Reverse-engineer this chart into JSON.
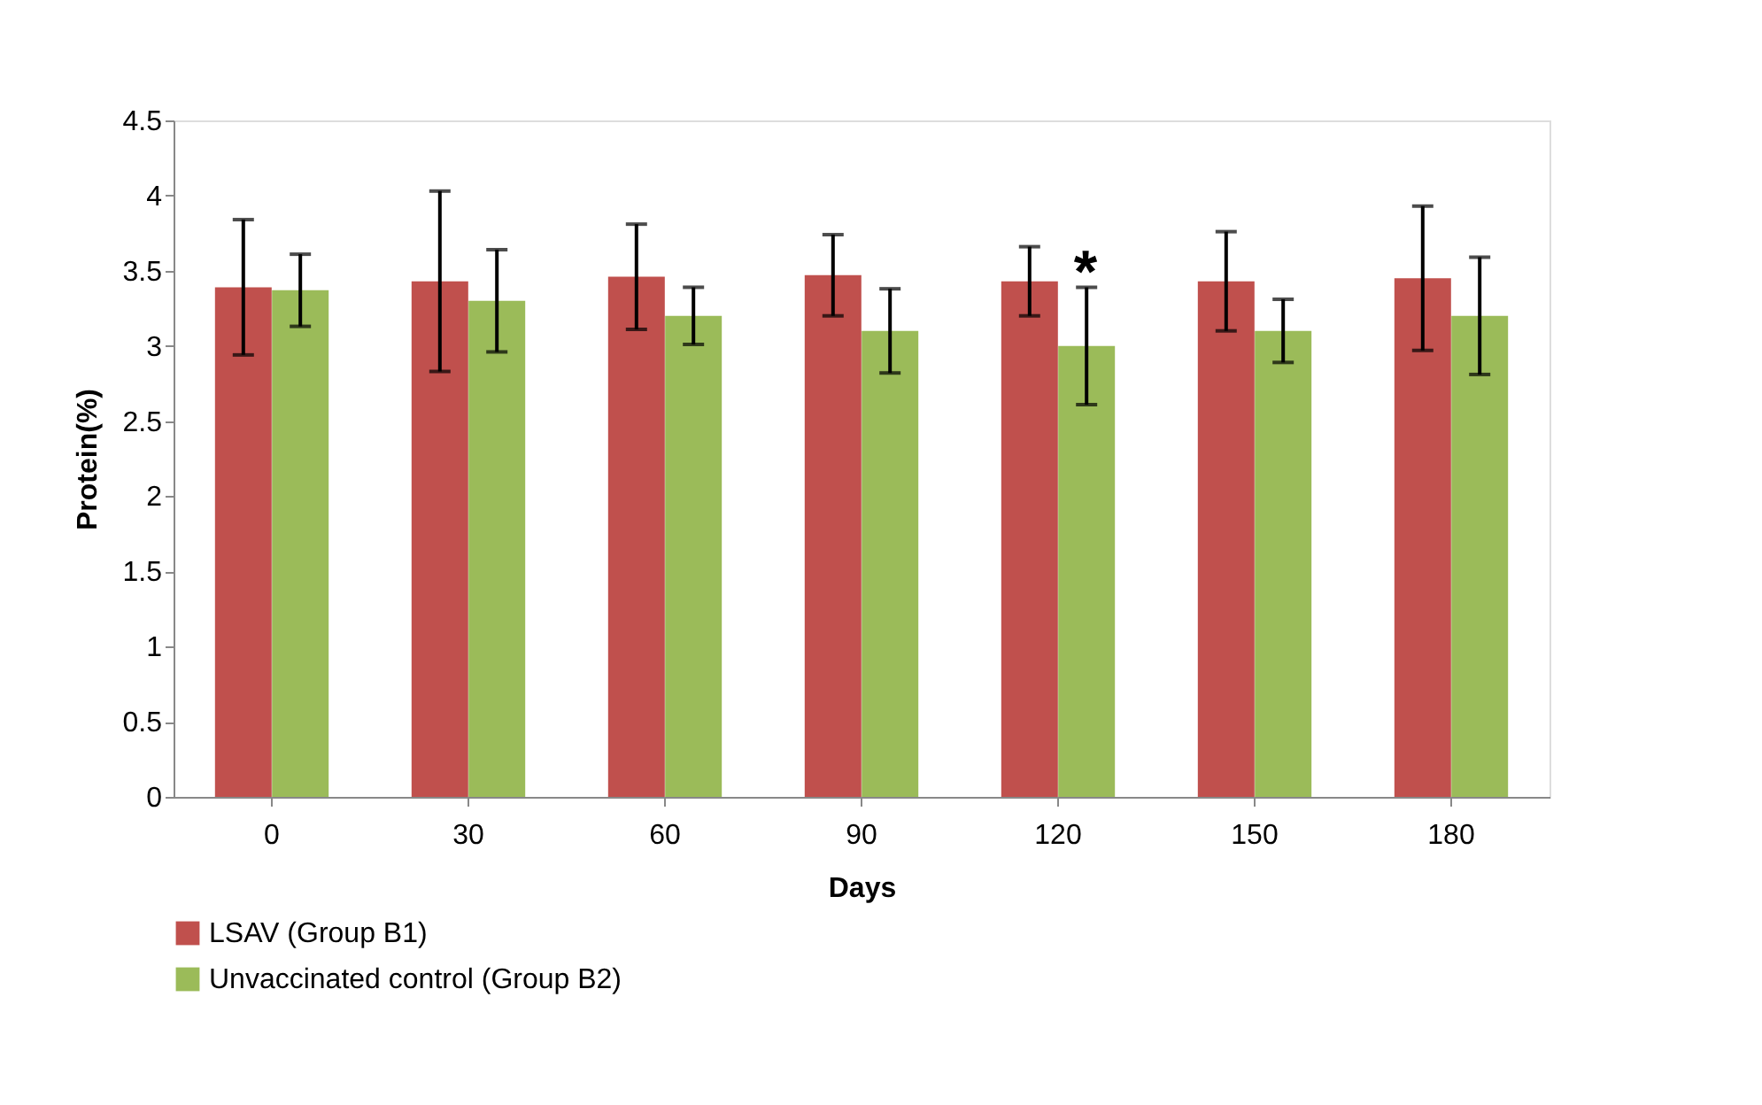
{
  "chart_data": {
    "type": "bar",
    "xlabel": "Days",
    "ylabel": "Protein(%)",
    "categories": [
      "0",
      "30",
      "60",
      "90",
      "120",
      "150",
      "180"
    ],
    "series": [
      {
        "name": "LSAV (Group B1)",
        "color": "#c0504d",
        "values": [
          3.39,
          3.43,
          3.46,
          3.47,
          3.43,
          3.43,
          3.45
        ],
        "errors": [
          0.45,
          0.6,
          0.35,
          0.27,
          0.23,
          0.33,
          0.48
        ]
      },
      {
        "name": "Unvaccinated control (Group B2)",
        "color": "#9bbb59",
        "values": [
          3.37,
          3.3,
          3.2,
          3.1,
          3.0,
          3.1,
          3.2
        ],
        "errors": [
          0.24,
          0.34,
          0.19,
          0.28,
          0.39,
          0.21,
          0.39
        ]
      }
    ],
    "ylim": [
      0,
      4.5
    ],
    "yticks": [
      0,
      0.5,
      1,
      1.5,
      2,
      2.5,
      3,
      3.5,
      4,
      4.5
    ],
    "annotations": [
      "*"
    ],
    "grid": false,
    "legend": "bottom"
  }
}
